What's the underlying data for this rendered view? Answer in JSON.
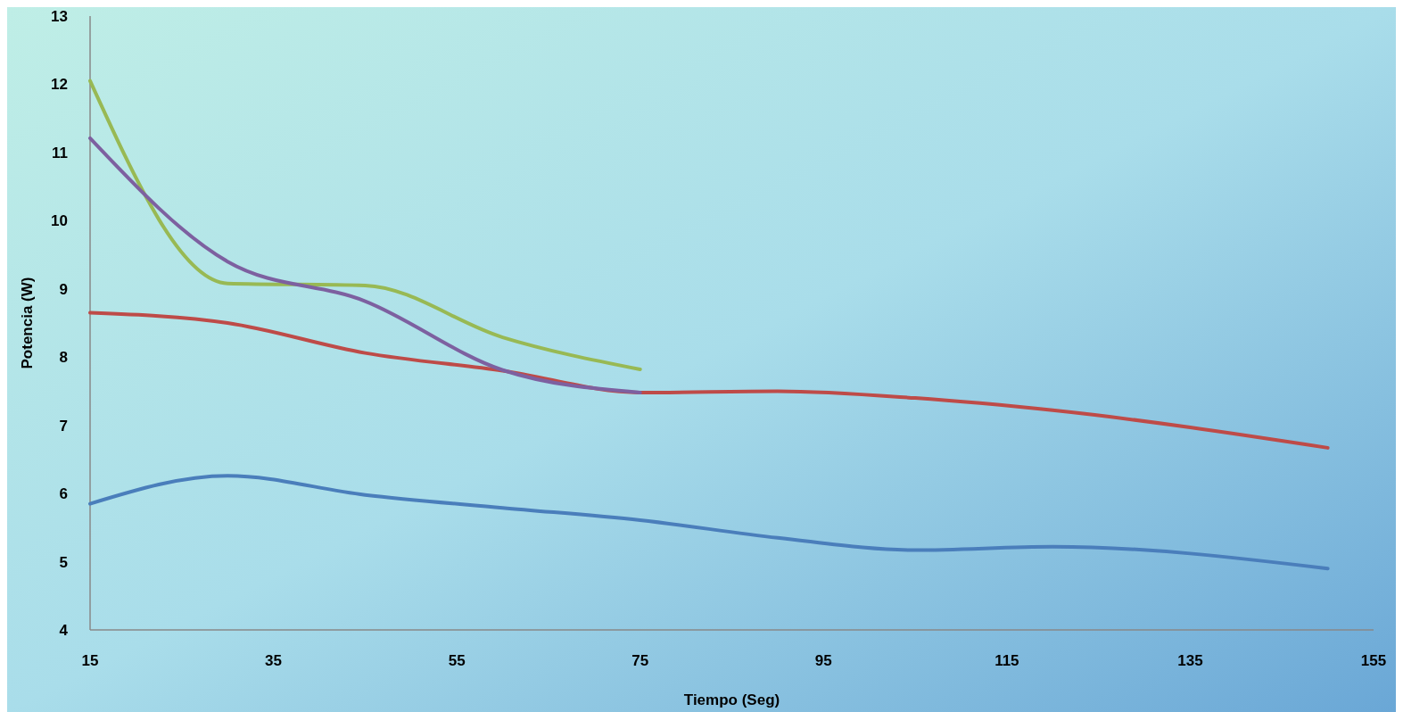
{
  "chart_data": {
    "type": "line",
    "xlabel": "Tiempo (Seg)",
    "ylabel": "Potencia (W)",
    "x": [
      15,
      30,
      45,
      60,
      75,
      90,
      105,
      120,
      150
    ],
    "series": [
      {
        "color": "#4a7ebb",
        "values": [
          5.85,
          6.26,
          5.98,
          5.79,
          5.61,
          5.35,
          5.17,
          5.22,
          4.9
        ]
      },
      {
        "color": "#be4b48",
        "values": [
          8.65,
          8.5,
          8.06,
          7.8,
          7.48,
          7.5,
          7.4,
          7.22,
          6.67
        ]
      },
      {
        "color": "#98b954",
        "values": [
          12.05,
          9.08,
          9.05,
          8.29,
          7.82,
          null,
          null,
          null,
          null
        ]
      },
      {
        "color": "#7d60a0",
        "values": [
          11.21,
          9.4,
          8.82,
          7.81,
          7.48,
          null,
          null,
          null,
          null
        ]
      }
    ],
    "xlim": [
      15,
      155
    ],
    "xticks": [
      15,
      35,
      55,
      75,
      95,
      115,
      135,
      155
    ],
    "ylim": [
      4,
      13
    ],
    "yticks": [
      4,
      5,
      6,
      7,
      8,
      9,
      10,
      11,
      12,
      13
    ],
    "grid": false,
    "marker": "none",
    "line_style": "solid"
  }
}
